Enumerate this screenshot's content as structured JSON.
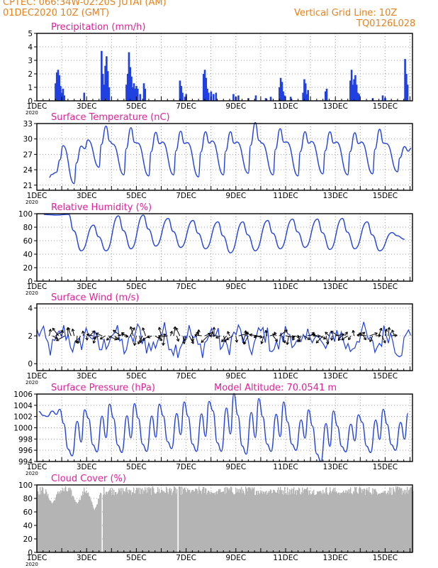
{
  "header": {
    "line1": "CPTEC:   066:34W-02:20S   JUTAI (AM)",
    "line2": "01DEC2020 10Z (GMT)",
    "grid_note": "Vertical Grid Line: 10Z",
    "code": "TQ0126L028",
    "model_altitude": "Model Altitude: 70.0541 m"
  },
  "colors": {
    "header": "#e8821e",
    "title": "#e0209a",
    "series": "#2040e0",
    "cloud": "#b4b4b4",
    "axis": "#000000",
    "grid": "#a0a0a0"
  },
  "x_axis": {
    "day_ticks": [
      1,
      3,
      5,
      7,
      9,
      11,
      13,
      15
    ],
    "day_labels": [
      "1DEC",
      "3DEC",
      "5DEC",
      "7DEC",
      "9DEC",
      "11DEC",
      "13DEC",
      "15DEC"
    ],
    "year_label": "2020",
    "range_days": [
      1,
      16.1
    ]
  },
  "chart_data": [
    {
      "type": "bar",
      "title": "Precipitation (mm/h)",
      "ylim": [
        0,
        5
      ],
      "yticks": [
        0,
        1,
        2,
        3,
        4,
        5
      ],
      "grid": true,
      "x_unit": "day of December",
      "bars": [
        [
          1.75,
          1.3
        ],
        [
          1.8,
          2.1
        ],
        [
          1.85,
          2.3
        ],
        [
          1.9,
          1.9
        ],
        [
          1.95,
          1.1
        ],
        [
          2.0,
          0.6
        ],
        [
          2.05,
          0.9
        ],
        [
          2.1,
          0.4
        ],
        [
          2.9,
          0.6
        ],
        [
          3.6,
          3.7
        ],
        [
          3.65,
          2.0
        ],
        [
          3.7,
          1.2
        ],
        [
          3.75,
          2.6
        ],
        [
          3.8,
          3.3
        ],
        [
          3.85,
          2.2
        ],
        [
          3.9,
          1.0
        ],
        [
          4.6,
          1.2
        ],
        [
          4.65,
          2.0
        ],
        [
          4.7,
          3.6
        ],
        [
          4.75,
          2.5
        ],
        [
          4.8,
          1.8
        ],
        [
          4.85,
          1.0
        ],
        [
          4.9,
          1.3
        ],
        [
          4.95,
          0.9
        ],
        [
          5.0,
          1.1
        ],
        [
          5.05,
          0.9
        ],
        [
          5.15,
          0.5
        ],
        [
          5.3,
          1.3
        ],
        [
          5.35,
          0.9
        ],
        [
          6.75,
          1.5
        ],
        [
          6.8,
          1.1
        ],
        [
          6.85,
          0.6
        ],
        [
          6.95,
          0.3
        ],
        [
          7.0,
          0.5
        ],
        [
          7.7,
          2.0
        ],
        [
          7.75,
          2.3
        ],
        [
          7.8,
          1.7
        ],
        [
          7.85,
          0.9
        ],
        [
          7.9,
          0.6
        ],
        [
          8.0,
          0.7
        ],
        [
          8.1,
          0.5
        ],
        [
          8.2,
          0.6
        ],
        [
          8.9,
          0.5
        ],
        [
          9.0,
          0.3
        ],
        [
          9.1,
          0.4
        ],
        [
          9.5,
          0.2
        ],
        [
          9.8,
          0.4
        ],
        [
          10.2,
          0.2
        ],
        [
          10.4,
          0.3
        ],
        [
          10.75,
          1.0
        ],
        [
          10.8,
          1.7
        ],
        [
          10.85,
          1.4
        ],
        [
          10.9,
          0.7
        ],
        [
          10.95,
          0.4
        ],
        [
          11.2,
          0.3
        ],
        [
          11.7,
          0.6
        ],
        [
          11.75,
          1.6
        ],
        [
          11.8,
          1.3
        ],
        [
          11.85,
          0.5
        ],
        [
          11.9,
          0.8
        ],
        [
          12.6,
          0.7
        ],
        [
          12.65,
          0.9
        ],
        [
          13.6,
          1.5
        ],
        [
          13.65,
          2.3
        ],
        [
          13.7,
          1.2
        ],
        [
          13.75,
          1.6
        ],
        [
          13.8,
          1.9
        ],
        [
          13.85,
          1.2
        ],
        [
          13.9,
          0.6
        ],
        [
          13.95,
          0.5
        ],
        [
          14.5,
          0.2
        ],
        [
          14.9,
          0.4
        ],
        [
          15.0,
          0.2
        ],
        [
          15.8,
          3.1
        ],
        [
          15.85,
          2.0
        ],
        [
          15.9,
          1.2
        ]
      ]
    },
    {
      "type": "line",
      "title": "Surface Temperature (nC)",
      "ylim": [
        20,
        33
      ],
      "yticks": [
        21,
        24,
        27,
        30,
        33
      ],
      "grid": true,
      "x_unit": "day of December",
      "daily_max": [
        23.5,
        28.6,
        32.5,
        32.2,
        31.3,
        31.5,
        31.4,
        31.4,
        33.2,
        32.0,
        31.4,
        31.4,
        31.2,
        31.9,
        28.5
      ],
      "daily_min": [
        22.5,
        21.3,
        24.5,
        23.0,
        22.8,
        23.0,
        22.6,
        23.0,
        23.3,
        23.0,
        22.8,
        23.2,
        23.0,
        23.2,
        23.6
      ],
      "secondary_peaks": [
        28.7,
        29.8,
        29.0,
        29.2,
        29.4,
        29.3,
        29.6,
        29.4,
        29.2,
        29.4,
        29.5,
        29.4,
        29.4,
        29.1,
        28.2
      ]
    },
    {
      "type": "line",
      "title": "Relative Humidity (%)",
      "ylim": [
        0,
        100
      ],
      "yticks": [
        0,
        20,
        40,
        60,
        80,
        100
      ],
      "grid": true,
      "x_unit": "day of December",
      "daily_max": [
        99,
        99,
        83,
        97,
        98,
        93,
        90,
        88,
        88,
        90,
        92,
        92,
        93,
        88,
        72
      ],
      "daily_min": [
        98,
        45,
        45,
        48,
        52,
        50,
        48,
        42,
        45,
        48,
        50,
        47,
        48,
        45,
        62
      ]
    },
    {
      "type": "line",
      "title": "Surface Wind (m/s)",
      "ylim": [
        -0.5,
        4.3
      ],
      "yticks": [
        0,
        2,
        4
      ],
      "grid": true,
      "x_unit": "day of December",
      "speed_range": [
        0.4,
        3.8
      ],
      "arrows_day_range": [
        1.5,
        15.4
      ],
      "arrows": "wind direction vectors plotted every ~3 hours along 2 m/s baseline"
    },
    {
      "type": "line",
      "title": "Surface Pressure (hPa)",
      "ylim": [
        994,
        1006
      ],
      "yticks": [
        994,
        996,
        998,
        1000,
        1002,
        1004,
        1006
      ],
      "grid": true,
      "x_unit": "day of December",
      "daily_max": [
        1003.3,
        1003.2,
        1004.2,
        1004.3,
        1004.2,
        1004.6,
        1004.7,
        1006.1,
        1005.2,
        1004.6,
        1003.2,
        1003.0,
        1002.3,
        1003.3,
        1002.6
      ],
      "daily_min": [
        1002.0,
        995.0,
        995.7,
        995.6,
        995.8,
        996.3,
        995.8,
        995.8,
        995.3,
        995.8,
        996.0,
        994.0,
        995.7,
        995.6,
        996.0
      ]
    },
    {
      "type": "bar",
      "title": "Cloud Cover (%)",
      "ylim": [
        0,
        100
      ],
      "yticks": [
        0,
        20,
        40,
        60,
        80,
        100
      ],
      "grid": true,
      "x_unit": "day of December",
      "typical_range": [
        85,
        98
      ],
      "dips": [
        [
          1.6,
          72
        ],
        [
          2.6,
          72
        ],
        [
          3.3,
          62
        ],
        [
          3.6,
          0
        ],
        [
          4.2,
          94
        ],
        [
          6.65,
          0
        ],
        [
          7.2,
          92
        ],
        [
          8.1,
          88
        ],
        [
          10.1,
          90
        ],
        [
          12.3,
          90
        ],
        [
          13.2,
          88
        ],
        [
          14.8,
          88
        ]
      ]
    }
  ]
}
